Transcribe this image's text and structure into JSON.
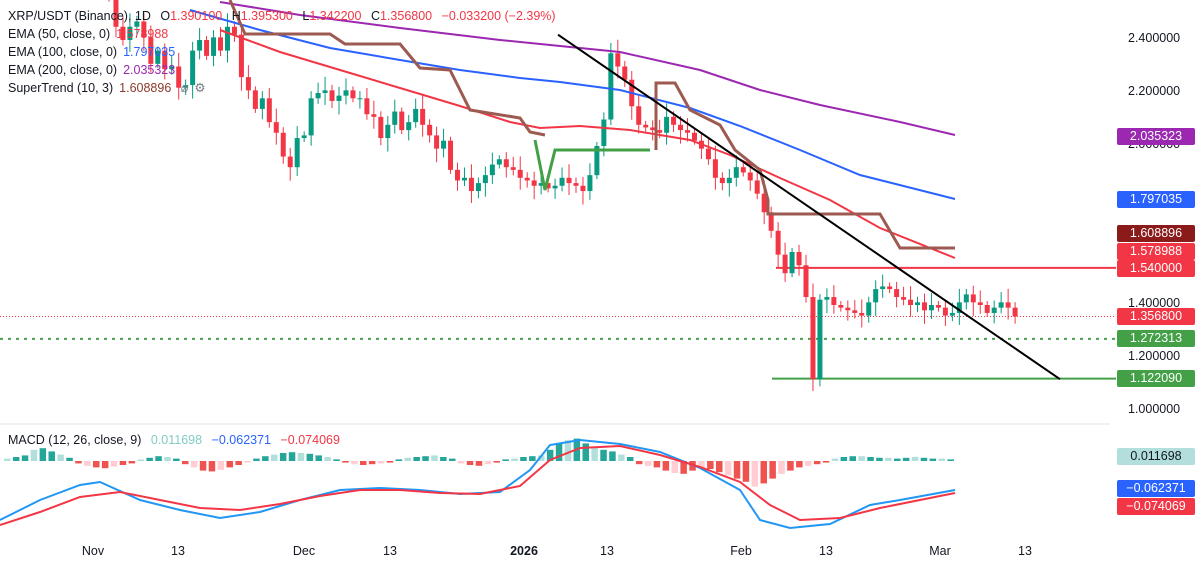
{
  "header": {
    "symbol": "XRP/USDT (Binance), 1D",
    "open_label": "O",
    "open": "1.390100",
    "high_label": "H",
    "high": "1.395300",
    "low_label": "L",
    "low": "1.342200",
    "close_label": "C",
    "close": "1.356800",
    "change": "−0.033200 (−2.39%)"
  },
  "indicators": {
    "ema50": {
      "label": "EMA (50, close, 0)",
      "value": "1.578988",
      "color": "#f23645"
    },
    "ema100": {
      "label": "EMA (100, close, 0)",
      "value": "1.797035",
      "color": "#2962ff"
    },
    "ema200": {
      "label": "EMA (200, close, 0)",
      "value": "2.035323",
      "color": "#9c27b0"
    },
    "supertrend": {
      "label": "SuperTrend (10, 3)",
      "value": "1.608896",
      "color": "#8d3a2c"
    },
    "macd": {
      "label": "MACD (12, 26, close, 9)",
      "hist": "0.011698",
      "macd": "−0.062371",
      "signal": "−0.074069"
    }
  },
  "price_tags": [
    {
      "value": "2.035323",
      "bg": "#9c27b0"
    },
    {
      "value": "1.797035",
      "bg": "#2962ff"
    },
    {
      "value": "1.608896",
      "bg": "#8b1a1a"
    },
    {
      "value": "1.578988",
      "bg": "#f23645"
    },
    {
      "value": "1.540000",
      "bg": "#f23645"
    },
    {
      "value": "1.356800",
      "bg": "#f23645"
    },
    {
      "value": "1.272313",
      "bg": "#43a047"
    },
    {
      "value": "1.122090",
      "bg": "#43a047"
    }
  ],
  "macd_tags": [
    {
      "value": "0.011698",
      "bg": "#b2dfdb",
      "fg": "#131722"
    },
    {
      "value": "−0.062371",
      "bg": "#2962ff",
      "fg": "#ffffff"
    },
    {
      "value": "−0.074069",
      "bg": "#f23645",
      "fg": "#ffffff"
    }
  ],
  "y_ticks": [
    "2.400000",
    "2.200000",
    "2.000000",
    "1.800000",
    "1.600000",
    "1.400000",
    "1.200000",
    "1.000000"
  ],
  "x_ticks": [
    {
      "label": "Nov",
      "bold": false
    },
    {
      "label": "13",
      "bold": false
    },
    {
      "label": "Dec",
      "bold": false
    },
    {
      "label": "13",
      "bold": false
    },
    {
      "label": "2026",
      "bold": true
    },
    {
      "label": "13",
      "bold": false
    },
    {
      "label": "Feb",
      "bold": false
    },
    {
      "label": "13",
      "bold": false
    },
    {
      "label": "Mar",
      "bold": false
    },
    {
      "label": "13",
      "bold": false
    }
  ],
  "chart_data": {
    "type": "line",
    "symbol": "XRP/USDT",
    "interval": "1D",
    "ylim": [
      0.95,
      2.48
    ],
    "x_range_days": [
      "2025-10-25",
      "2026-03-20"
    ],
    "ohlc": {
      "open": 1.3901,
      "high": 1.3953,
      "low": 1.3422,
      "close": 1.3568
    },
    "close_series": [
      2.56,
      2.45,
      2.4,
      2.45,
      2.47,
      2.41,
      2.31,
      2.36,
      2.29,
      2.3,
      2.22,
      2.23,
      2.36,
      2.4,
      2.34,
      2.41,
      2.36,
      2.45,
      2.42,
      2.26,
      2.21,
      2.14,
      2.18,
      2.09,
      2.05,
      1.96,
      1.92,
      2.03,
      2.04,
      2.18,
      2.2,
      2.21,
      2.17,
      2.19,
      2.21,
      2.18,
      2.18,
      2.12,
      2.11,
      2.03,
      2.08,
      2.13,
      2.06,
      2.09,
      2.14,
      2.08,
      2.04,
      1.99,
      2.02,
      1.91,
      1.87,
      1.88,
      1.83,
      1.86,
      1.89,
      1.93,
      1.95,
      1.92,
      1.91,
      1.88,
      1.87,
      1.85,
      1.86,
      1.84,
      1.85,
      1.88,
      1.86,
      1.85,
      1.83,
      1.89,
      2.0,
      2.1,
      2.35,
      2.3,
      2.25,
      2.15,
      2.08,
      2.07,
      2.06,
      2.05,
      2.11,
      2.08,
      2.06,
      2.05,
      2.02,
      1.99,
      1.95,
      1.88,
      1.86,
      1.88,
      1.92,
      1.9,
      1.87,
      1.82,
      1.75,
      1.68,
      1.59,
      1.52,
      1.6,
      1.55,
      1.43,
      1.12,
      1.42,
      1.43,
      1.4,
      1.39,
      1.38,
      1.37,
      1.36,
      1.41,
      1.46,
      1.47,
      1.46,
      1.43,
      1.42,
      1.4,
      1.41,
      1.38,
      1.4,
      1.39,
      1.36,
      1.37,
      1.41,
      1.44,
      1.41,
      1.4,
      1.37,
      1.39,
      1.41,
      1.39,
      1.3568
    ],
    "series": [
      {
        "name": "EMA (50, close, 0)",
        "last": 1.578988
      },
      {
        "name": "EMA (100, close, 0)",
        "last": 1.797035
      },
      {
        "name": "EMA (200, close, 0)",
        "last": 2.035323
      },
      {
        "name": "SuperTrend (10, 3)",
        "last": 1.608896
      }
    ],
    "horizontal_levels": {
      "resistance": 1.54,
      "support_dotted": 1.272313,
      "support": 1.12209
    },
    "trendline": {
      "start": [
        "2026-01-06",
        2.42
      ],
      "end": [
        "2026-03-18",
        1.12
      ]
    },
    "macd": {
      "hist": 0.011698,
      "macd": -0.062371,
      "signal": -0.074069
    }
  }
}
